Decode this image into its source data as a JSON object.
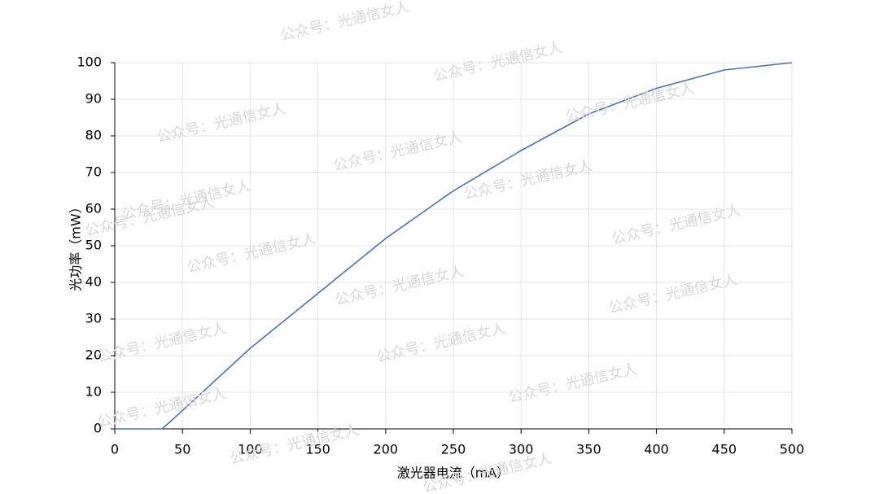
{
  "chart_data": {
    "type": "line",
    "x_label": "激光器电流（mA）",
    "y_label": "光功率（mW）",
    "watermark": "公众号：光通信女人",
    "x": [
      0,
      35,
      50,
      100,
      150,
      200,
      250,
      300,
      350,
      400,
      450,
      500
    ],
    "series": [
      {
        "name": "光功率",
        "color": "#4a72b0",
        "values": [
          0,
          0,
          5,
          22,
          37,
          52,
          65,
          76,
          86,
          93,
          98,
          100
        ]
      }
    ],
    "xlim": [
      0,
      500
    ],
    "xticks": [
      0,
      50,
      100,
      150,
      200,
      250,
      300,
      350,
      400,
      450,
      500
    ],
    "ylim": [
      0,
      100
    ],
    "yticks": [
      0,
      10,
      20,
      30,
      40,
      50,
      60,
      70,
      80,
      90,
      100
    ],
    "grid": true,
    "legend": false
  }
}
